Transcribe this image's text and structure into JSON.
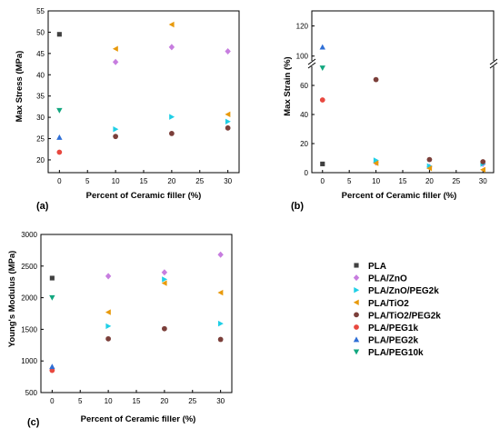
{
  "legend": [
    {
      "name": "PLA",
      "color": "#404040",
      "marker": "square"
    },
    {
      "name": "PLA/ZnO",
      "color": "#c77ddf",
      "marker": "diamond"
    },
    {
      "name": "PLA/ZnO/PEG2k",
      "color": "#1fcfe6",
      "marker": "triangle-right"
    },
    {
      "name": "PLA/TiO2",
      "color": "#e89a0c",
      "marker": "triangle-left"
    },
    {
      "name": "PLA/TiO2/PEG2k",
      "color": "#7b3f3a",
      "marker": "circle"
    },
    {
      "name": "PLA/PEG1k",
      "color": "#e8483f",
      "marker": "circle"
    },
    {
      "name": "PLA/PEG2k",
      "color": "#2f6fd6",
      "marker": "triangle-up"
    },
    {
      "name": "PLA/PEG10k",
      "color": "#12a77f",
      "marker": "triangle-down"
    }
  ],
  "chart_data": [
    {
      "type": "scatter",
      "panel": "(a)",
      "xlabel": "Percent of Ceramic filler (%)",
      "ylabel": "Max Stress (MPa)",
      "xlim": [
        -2,
        32
      ],
      "ylim": [
        17,
        55
      ],
      "xticks": [
        0,
        5,
        10,
        15,
        20,
        25,
        30
      ],
      "yticks": [
        20,
        25,
        30,
        35,
        40,
        45,
        50,
        55
      ],
      "series": [
        {
          "name": "PLA",
          "points": [
            [
              0,
              49.5
            ]
          ]
        },
        {
          "name": "PLA/ZnO",
          "points": [
            [
              10,
              43.0
            ],
            [
              20,
              46.5
            ],
            [
              30,
              45.5
            ]
          ]
        },
        {
          "name": "PLA/ZnO/PEG2k",
          "points": [
            [
              10,
              27.2
            ],
            [
              20,
              30.1
            ],
            [
              30,
              29.0
            ]
          ]
        },
        {
          "name": "PLA/TiO2",
          "points": [
            [
              10,
              46.1
            ],
            [
              20,
              51.8
            ],
            [
              30,
              30.7
            ]
          ]
        },
        {
          "name": "PLA/TiO2/PEG2k",
          "points": [
            [
              10,
              25.5
            ],
            [
              20,
              26.2
            ],
            [
              30,
              27.5
            ]
          ]
        },
        {
          "name": "PLA/PEG1k",
          "points": [
            [
              0,
              21.8
            ]
          ]
        },
        {
          "name": "PLA/PEG2k",
          "points": [
            [
              0,
              25.3
            ]
          ]
        },
        {
          "name": "PLA/PEG10k",
          "points": [
            [
              0,
              31.6
            ]
          ]
        }
      ]
    },
    {
      "type": "scatter",
      "panel": "(b)",
      "xlabel": "Percent of Ceramic filler (%)",
      "ylabel": "Max Strain (%)",
      "xlim": [
        -2,
        32
      ],
      "ylim": [
        0,
        130
      ],
      "axis_break": [
        75,
        95
      ],
      "xticks": [
        0,
        5,
        10,
        15,
        20,
        25,
        30
      ],
      "yticks_lower": [
        0,
        20,
        40,
        60
      ],
      "yticks_upper": [
        100,
        120
      ],
      "series": [
        {
          "name": "PLA",
          "points": [
            [
              0,
              6
            ]
          ]
        },
        {
          "name": "PLA/ZnO",
          "points": [
            [
              10,
              7
            ],
            [
              20,
              4
            ],
            [
              30,
              6
            ]
          ]
        },
        {
          "name": "PLA/ZnO/PEG2k",
          "points": [
            [
              10,
              8.5
            ],
            [
              20,
              4.5
            ],
            [
              30,
              6
            ]
          ]
        },
        {
          "name": "PLA/TiO2",
          "points": [
            [
              10,
              6.5
            ],
            [
              20,
              3
            ],
            [
              30,
              2
            ]
          ]
        },
        {
          "name": "PLA/TiO2/PEG2k",
          "points": [
            [
              10,
              64
            ],
            [
              20,
              9
            ],
            [
              30,
              7.5
            ]
          ]
        },
        {
          "name": "PLA/PEG1k",
          "points": [
            [
              0,
              50
            ]
          ]
        },
        {
          "name": "PLA/PEG2k",
          "points": [
            [
              0,
              106
            ]
          ]
        },
        {
          "name": "PLA/PEG10k",
          "points": [
            [
              0,
              72
            ]
          ]
        }
      ]
    },
    {
      "type": "scatter",
      "panel": "(c)",
      "xlabel": "Percent of Ceramic filler (%)",
      "ylabel": "Young's Modulus (MPa)",
      "xlim": [
        -2,
        32
      ],
      "ylim": [
        500,
        3000
      ],
      "xticks": [
        0,
        5,
        10,
        15,
        20,
        25,
        30
      ],
      "yticks": [
        500,
        1000,
        1500,
        2000,
        2500,
        3000
      ],
      "series": [
        {
          "name": "PLA",
          "points": [
            [
              0,
              2310
            ]
          ]
        },
        {
          "name": "PLA/ZnO",
          "points": [
            [
              10,
              2340
            ],
            [
              20,
              2400
            ],
            [
              30,
              2680
            ]
          ]
        },
        {
          "name": "PLA/ZnO/PEG2k",
          "points": [
            [
              10,
              1550
            ],
            [
              20,
              2290
            ],
            [
              30,
              1590
            ]
          ]
        },
        {
          "name": "PLA/TiO2",
          "points": [
            [
              10,
              1770
            ],
            [
              20,
              2230
            ],
            [
              30,
              2080
            ]
          ]
        },
        {
          "name": "PLA/TiO2/PEG2k",
          "points": [
            [
              10,
              1350
            ],
            [
              20,
              1510
            ],
            [
              30,
              1340
            ]
          ]
        },
        {
          "name": "PLA/PEG1k",
          "points": [
            [
              0,
              850
            ]
          ]
        },
        {
          "name": "PLA/PEG2k",
          "points": [
            [
              0,
              910
            ]
          ]
        },
        {
          "name": "PLA/PEG10k",
          "points": [
            [
              0,
              2000
            ]
          ]
        }
      ]
    }
  ]
}
